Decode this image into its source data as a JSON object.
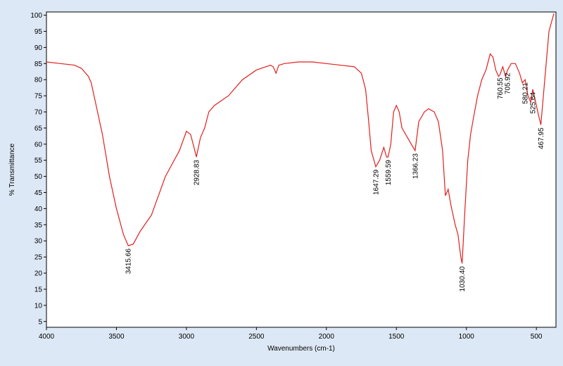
{
  "chart_data": {
    "type": "line",
    "xlabel": "Wavenumbers (cm-1)",
    "ylabel": "% Transmittance",
    "color": "#e0201e",
    "x": [
      4000,
      3900,
      3800,
      3750,
      3720,
      3700,
      3680,
      3650,
      3600,
      3550,
      3500,
      3450,
      3415.66,
      3380,
      3330,
      3250,
      3150,
      3050,
      3000,
      2970,
      2940,
      2928.83,
      2900,
      2870,
      2840,
      2800,
      2700,
      2600,
      2500,
      2400,
      2380,
      2360,
      2340,
      2300,
      2200,
      2100,
      2000,
      1900,
      1800,
      1750,
      1720,
      1700,
      1680,
      1647.29,
      1620,
      1590,
      1570,
      1559.59,
      1540,
      1520,
      1500,
      1480,
      1460,
      1420,
      1380,
      1366.23,
      1340,
      1300,
      1270,
      1230,
      1200,
      1170,
      1150,
      1130,
      1110,
      1080,
      1060,
      1040,
      1030.4,
      1010,
      990,
      970,
      950,
      920,
      890,
      860,
      830,
      810,
      790,
      770,
      760.55,
      740,
      720,
      705.92,
      680,
      650,
      620,
      600,
      580.21,
      560,
      540,
      525.64,
      505,
      490,
      467.95,
      440,
      410,
      375
    ],
    "values": [
      85.5,
      85,
      84.5,
      83.5,
      82,
      81,
      79,
      73,
      63,
      50,
      40,
      32,
      28.5,
      29,
      33,
      38,
      50,
      58,
      64,
      63,
      58,
      56,
      62,
      65,
      70,
      72,
      75,
      80,
      83,
      84.5,
      84,
      82,
      84.5,
      85,
      85.5,
      85.5,
      85,
      84.5,
      84,
      82,
      77,
      68,
      58,
      53,
      55,
      59,
      56,
      56,
      60,
      70,
      72,
      70,
      65,
      62,
      59,
      58,
      67,
      70,
      71,
      70,
      67,
      58,
      44,
      46,
      41,
      35,
      32,
      25,
      23,
      40,
      55,
      63,
      68,
      75,
      80,
      83,
      88,
      87,
      83,
      81,
      81.5,
      84,
      81,
      83,
      85,
      85,
      82,
      79,
      80,
      75,
      73,
      77,
      73,
      70,
      66,
      80,
      95,
      100.5
    ],
    "xlim": [
      4000,
      360
    ],
    "ylim": [
      3.2,
      101
    ],
    "xticks": [
      4000,
      3500,
      3000,
      2500,
      2000,
      1500,
      1000,
      500
    ],
    "yticks": [
      5,
      10,
      15,
      20,
      25,
      30,
      35,
      40,
      45,
      50,
      55,
      60,
      65,
      70,
      75,
      80,
      85,
      90,
      95,
      100
    ],
    "annotations": [
      {
        "x": 3415.66,
        "y": 28.5,
        "label": "3415.66"
      },
      {
        "x": 2928.83,
        "y": 56,
        "label": "2928.83"
      },
      {
        "x": 1647.29,
        "y": 53,
        "label": "1647.29"
      },
      {
        "x": 1559.59,
        "y": 56,
        "label": "1559.59"
      },
      {
        "x": 1366.23,
        "y": 58,
        "label": "1366.23"
      },
      {
        "x": 1030.4,
        "y": 23,
        "label": "1030.40"
      },
      {
        "x": 760.55,
        "y": 81.5,
        "label": "760.55"
      },
      {
        "x": 705.92,
        "y": 83,
        "label": "705.92"
      },
      {
        "x": 580.21,
        "y": 80,
        "label": "580.21"
      },
      {
        "x": 525.64,
        "y": 77,
        "label": "525.64"
      },
      {
        "x": 467.95,
        "y": 66,
        "label": "467.95"
      }
    ]
  }
}
